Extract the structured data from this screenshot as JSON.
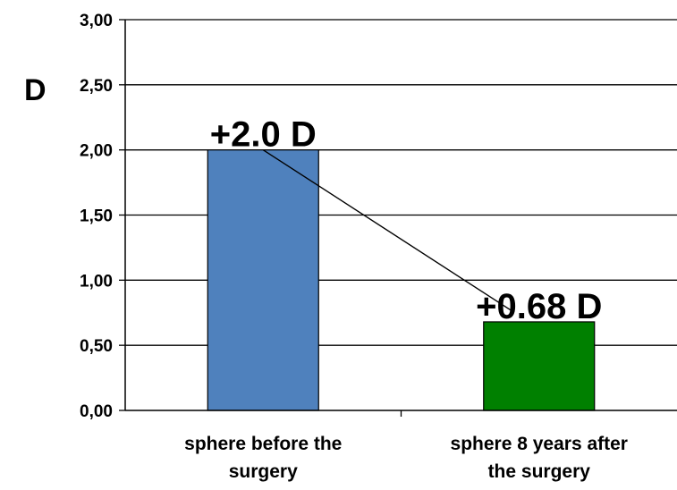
{
  "chart_data": {
    "type": "bar",
    "title": "",
    "xlabel": "",
    "ylabel": "D",
    "ylim": [
      0,
      3
    ],
    "yticks": [
      "0,00",
      "0,50",
      "1,00",
      "1,50",
      "2,00",
      "2,50",
      "3,00"
    ],
    "grid": true,
    "categories": [
      [
        "sphere before the",
        "surgery"
      ],
      [
        "sphere 8 years after",
        "the surgery"
      ]
    ],
    "values": [
      2.0,
      0.68
    ],
    "data_labels": [
      "+2.0 D",
      "+0.68 D"
    ],
    "bar_colors": [
      "#4f81bd",
      "#008000"
    ],
    "connector_line": true
  }
}
